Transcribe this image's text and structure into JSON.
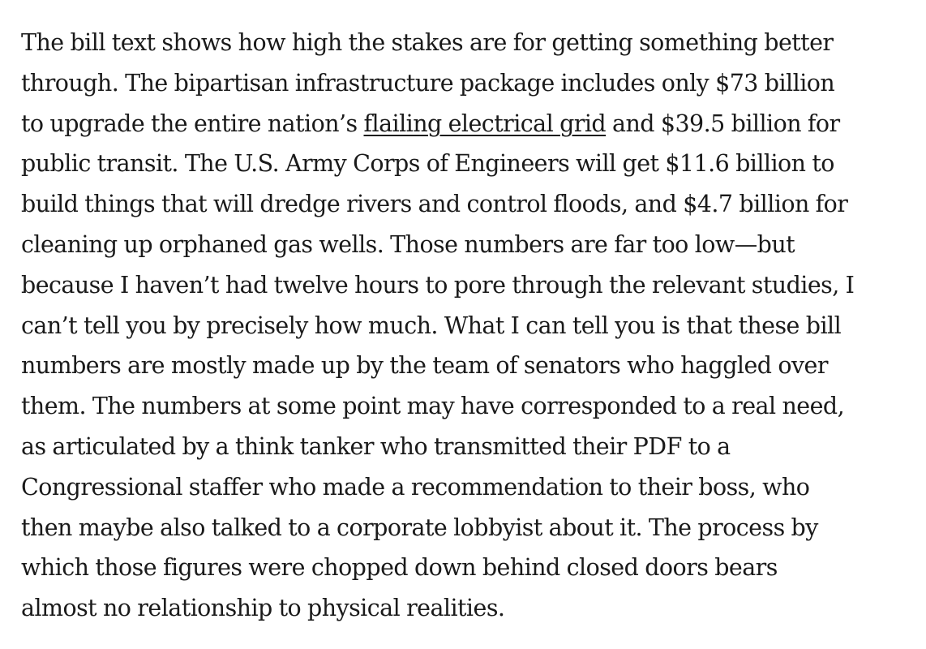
{
  "article": {
    "paragraph": {
      "line_1": "The bill text shows how high the stakes are for getting something better",
      "line_2": "through. The bipartisan infrastructure package includes only $73 billion",
      "line_3_before_link": "to upgrade the entire nation’s ",
      "link_text": "flailing electrical grid",
      "line_3_after_link": " and $39.5 billion for",
      "line_4": "public transit. The U.S. Army Corps of Engineers will get $11.6 billion to",
      "line_5": "build things that will dredge rivers and control floods, and $4.7 billion for",
      "line_6": "cleaning up orphaned gas wells. Those numbers are far too low—but",
      "line_7": "because I haven’t had twelve hours to pore through the relevant studies, I",
      "line_8": "can’t tell you by precisely how much. What I can tell you is that these bill",
      "line_9": "numbers are mostly made up by the team of senators who haggled over",
      "line_10": "them. The numbers at some point may have corresponded to a real need,",
      "line_11": "as articulated by a think tanker who transmitted their PDF to a",
      "line_12": "Congressional staffer who made a recommendation to their boss, who",
      "line_13": "then maybe also talked to a corporate lobbyist about it. The process by",
      "line_14": "which those figures were chopped down behind closed doors bears",
      "line_15": "almost no relationship to physical realities."
    }
  }
}
